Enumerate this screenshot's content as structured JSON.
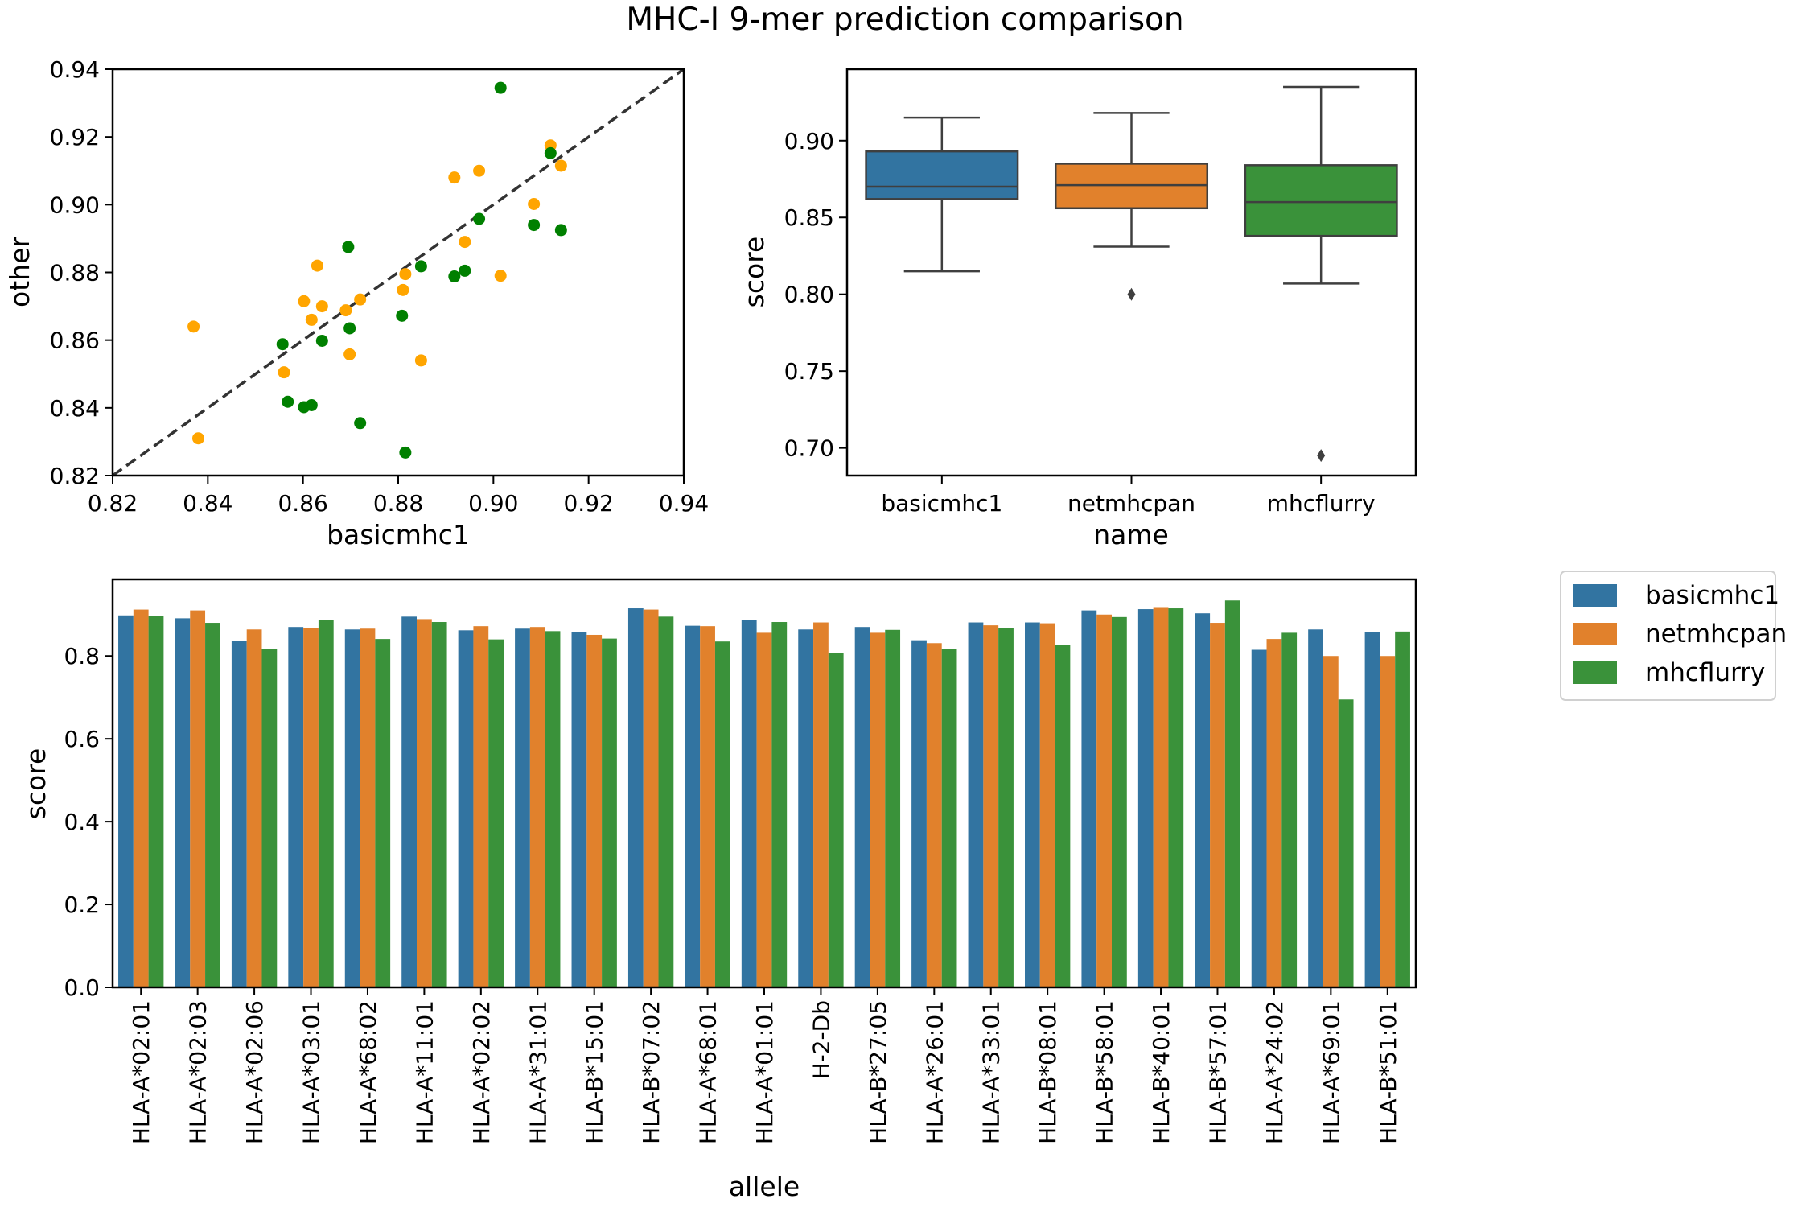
{
  "title": "MHC-I 9-mer prediction comparison",
  "colors": {
    "basicmhc1": "#3274a1",
    "netmhcpan": "#e1812c",
    "mhcflurry": "#3a923a",
    "scatter_netmhcpan": "#ffa500",
    "scatter_mhcflurry": "#008000",
    "box_edge": "#3f3f3f"
  },
  "chart_data": [
    {
      "type": "scatter",
      "xlabel": "basicmhc1",
      "ylabel": "other",
      "xlim": [
        0.82,
        0.94
      ],
      "ylim": [
        0.82,
        0.94
      ],
      "xticks": [
        "0.82",
        "0.84",
        "0.86",
        "0.88",
        "0.90",
        "0.92",
        "0.94"
      ],
      "yticks": [
        "0.82",
        "0.84",
        "0.86",
        "0.88",
        "0.90",
        "0.92",
        "0.94"
      ],
      "diagonal": true,
      "series": [
        {
          "points": [
            [
              0.837,
              0.864
            ],
            [
              0.838,
              0.831
            ],
            [
              0.856,
              0.8505
            ],
            [
              0.8602,
              0.8715
            ],
            [
              0.8618,
              0.866
            ],
            [
              0.863,
              0.882
            ],
            [
              0.864,
              0.87
            ],
            [
              0.869,
              0.8688
            ],
            [
              0.8698,
              0.8558
            ],
            [
              0.872,
              0.872
            ],
            [
              0.881,
              0.8748
            ],
            [
              0.8815,
              0.8795
            ],
            [
              0.8848,
              0.854
            ],
            [
              0.8918,
              0.908
            ],
            [
              0.894,
              0.889
            ],
            [
              0.897,
              0.91
            ],
            [
              0.9015,
              0.879
            ],
            [
              0.9085,
              0.9002
            ],
            [
              0.912,
              0.9175
            ],
            [
              0.9142,
              0.9115
            ]
          ]
        },
        {
          "points": [
            [
              0.8557,
              0.8588
            ],
            [
              0.8568,
              0.8418
            ],
            [
              0.8602,
              0.8402
            ],
            [
              0.8618,
              0.8408
            ],
            [
              0.864,
              0.8598
            ],
            [
              0.8695,
              0.8875
            ],
            [
              0.8698,
              0.8635
            ],
            [
              0.872,
              0.8355
            ],
            [
              0.8808,
              0.8672
            ],
            [
              0.8815,
              0.8268
            ],
            [
              0.8848,
              0.8818
            ],
            [
              0.8918,
              0.8788
            ],
            [
              0.894,
              0.8805
            ],
            [
              0.897,
              0.8958
            ],
            [
              0.9015,
              0.9345
            ],
            [
              0.9085,
              0.894
            ],
            [
              0.912,
              0.9152
            ],
            [
              0.9142,
              0.8925
            ]
          ]
        }
      ]
    },
    {
      "type": "box",
      "xlabel": "name",
      "ylabel": "score",
      "ylim": [
        0.682,
        0.9465
      ],
      "yticks": [
        "0.70",
        "0.75",
        "0.80",
        "0.85",
        "0.90"
      ],
      "categories": [
        "basicmhc1",
        "netmhcpan",
        "mhcflurry"
      ],
      "boxes": [
        {
          "whisker_low": 0.815,
          "q1": 0.862,
          "median": 0.87,
          "q3": 0.893,
          "whisker_high": 0.915,
          "outliers": []
        },
        {
          "whisker_low": 0.831,
          "q1": 0.856,
          "median": 0.871,
          "q3": 0.885,
          "whisker_high": 0.918,
          "outliers": [
            0.8
          ]
        },
        {
          "whisker_low": 0.807,
          "q1": 0.838,
          "median": 0.86,
          "q3": 0.884,
          "whisker_high": 0.935,
          "outliers": [
            0.695
          ]
        }
      ]
    },
    {
      "type": "bar",
      "xlabel": "allele",
      "ylabel": "score",
      "ylim": [
        0.0,
        0.985
      ],
      "yticks": [
        "0.0",
        "0.2",
        "0.4",
        "0.6",
        "0.8"
      ],
      "categories": [
        "HLA-A*02:01",
        "HLA-A*02:03",
        "HLA-A*02:06",
        "HLA-A*03:01",
        "HLA-A*68:02",
        "HLA-A*11:01",
        "HLA-A*02:02",
        "HLA-A*31:01",
        "HLA-B*15:01",
        "HLA-B*07:02",
        "HLA-A*68:01",
        "HLA-A*01:01",
        "H-2-Db",
        "HLA-B*27:05",
        "HLA-A*26:01",
        "HLA-A*33:01",
        "HLA-B*08:01",
        "HLA-B*58:01",
        "HLA-B*40:01",
        "HLA-B*57:01",
        "HLA-A*24:02",
        "HLA-A*69:01",
        "HLA-B*51:01"
      ],
      "legend": {
        "placement": "outside-right",
        "entries": [
          "basicmhc1",
          "netmhcpan",
          "mhcflurry"
        ]
      },
      "series": [
        {
          "name": "basicmhc1",
          "values": [
            0.898,
            0.891,
            0.837,
            0.87,
            0.864,
            0.895,
            0.862,
            0.866,
            0.857,
            0.915,
            0.873,
            0.887,
            0.864,
            0.87,
            0.838,
            0.881,
            0.881,
            0.91,
            0.913,
            0.903,
            0.815,
            0.864,
            0.857
          ]
        },
        {
          "name": "netmhcpan",
          "values": [
            0.912,
            0.91,
            0.864,
            0.868,
            0.866,
            0.889,
            0.872,
            0.87,
            0.851,
            0.912,
            0.872,
            0.856,
            0.881,
            0.856,
            0.831,
            0.874,
            0.879,
            0.9,
            0.918,
            0.88,
            0.841,
            0.8,
            0.8
          ]
        },
        {
          "name": "mhcflurry",
          "values": [
            0.896,
            0.88,
            0.816,
            0.887,
            0.841,
            0.882,
            0.84,
            0.86,
            0.842,
            0.895,
            0.835,
            0.882,
            0.807,
            0.863,
            0.817,
            0.867,
            0.827,
            0.894,
            0.915,
            0.934,
            0.856,
            0.695,
            0.859
          ]
        }
      ]
    }
  ]
}
